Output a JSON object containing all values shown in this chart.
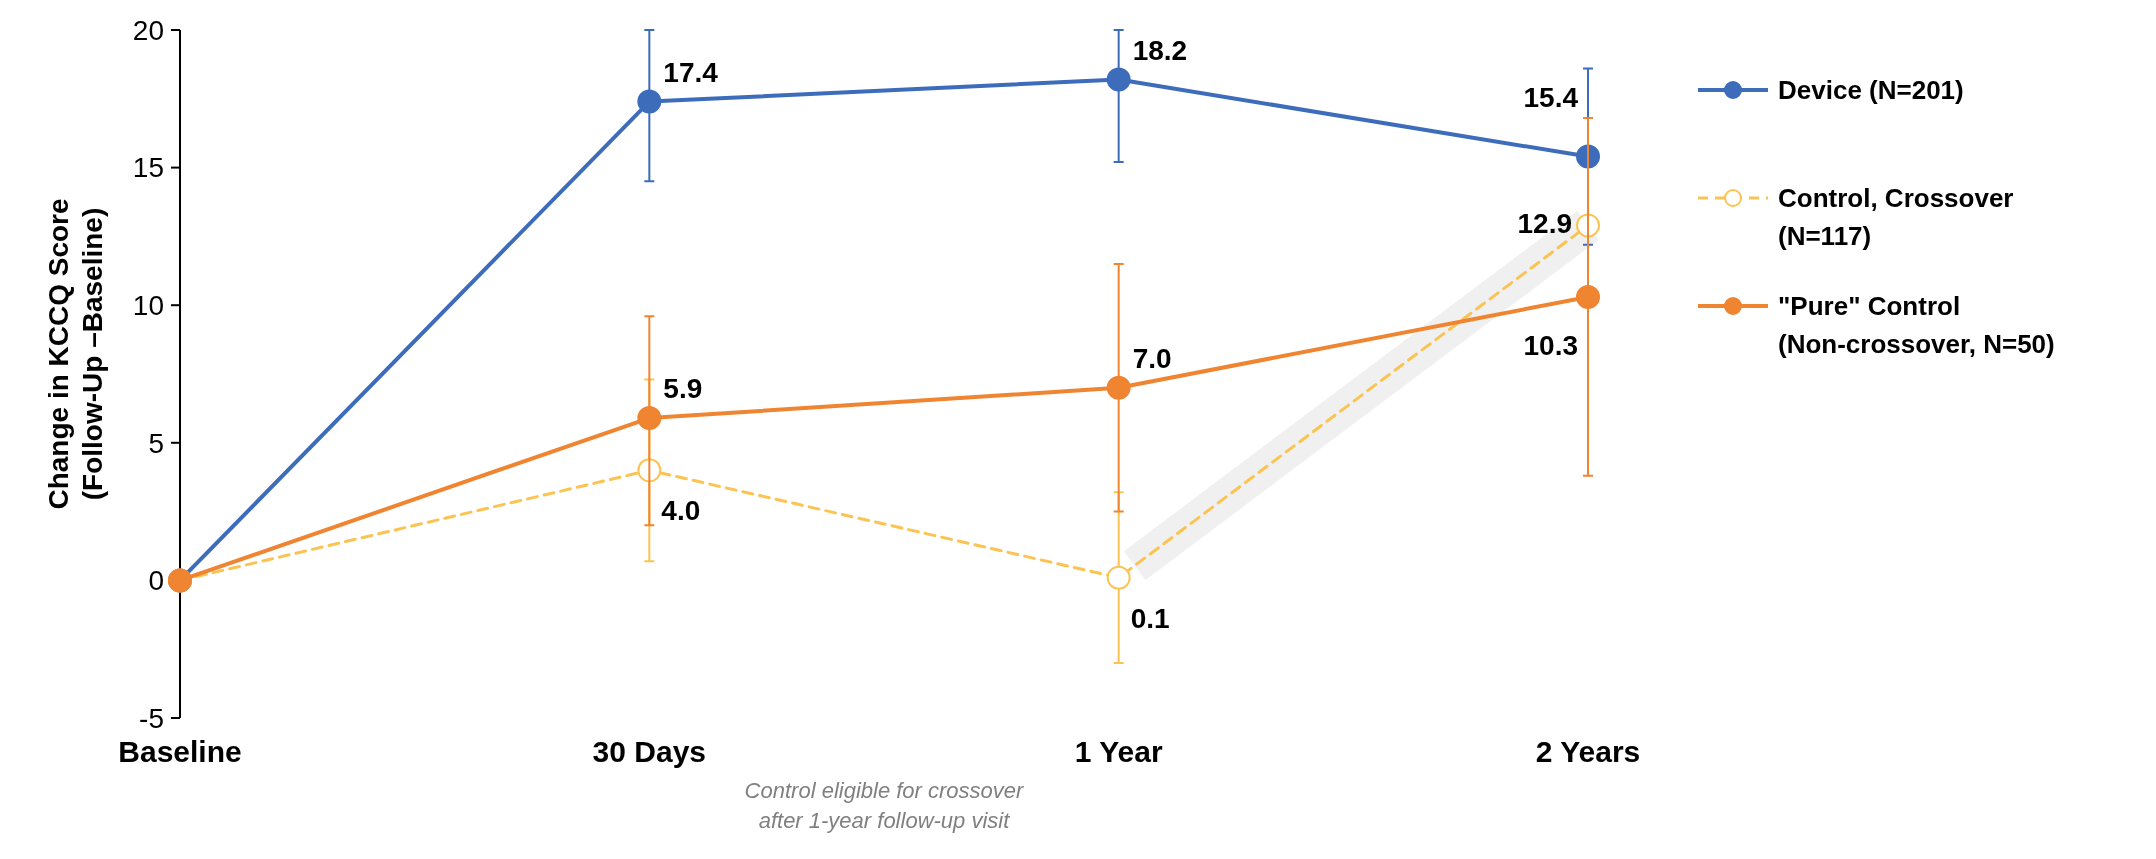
{
  "chart_data": {
    "type": "line",
    "ylabel": "Change in KCCQ Score\n(Follow-Up –Baseline)",
    "categories": [
      "Baseline",
      "30 Days",
      "1 Year",
      "2 Years"
    ],
    "ylim": [
      -5,
      20
    ],
    "yticks": [
      -5,
      0,
      5,
      10,
      15,
      20
    ],
    "series": [
      {
        "name": "Device (N=201)",
        "color": "#3d6cbb",
        "values": [
          0,
          17.4,
          18.2,
          15.4
        ],
        "value_labels": [
          null,
          "17.4",
          "18.2",
          "15.4"
        ],
        "errors": [
          null,
          [
            14.5,
            20
          ],
          [
            15.2,
            20
          ],
          [
            12.2,
            18.6
          ]
        ]
      },
      {
        "name": "Control, Crossover (N=117)",
        "color": "#fbc452",
        "line_style": "dashed",
        "values": [
          0,
          4.0,
          0.1,
          12.9
        ],
        "value_labels": [
          null,
          "4.0",
          "0.1",
          "12.9"
        ],
        "errors": [
          null,
          [
            0.7,
            7.3
          ],
          [
            -3.0,
            3.2
          ],
          null
        ]
      },
      {
        "name": "\"Pure\" Control (Non-crossover, N=50)",
        "color": "#ef8431",
        "values": [
          0,
          5.9,
          7.0,
          10.3
        ],
        "value_labels": [
          null,
          "5.9",
          "7.0",
          "10.3"
        ],
        "errors": [
          null,
          [
            2.0,
            9.6
          ],
          [
            2.5,
            11.5
          ],
          [
            3.8,
            16.8
          ]
        ]
      }
    ],
    "marker": "circle",
    "grid": false,
    "legend": "right",
    "annotations": [
      "Control eligible for crossover after 1-year follow-up visit"
    ]
  }
}
